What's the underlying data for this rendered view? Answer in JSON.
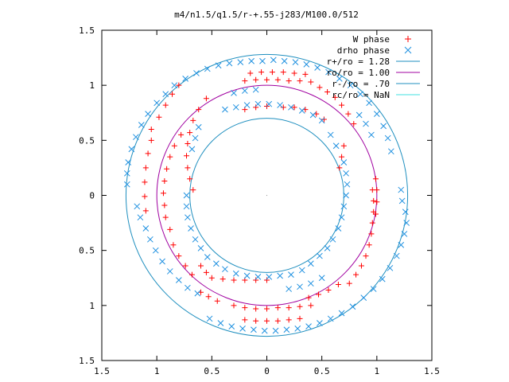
{
  "chart_data": {
    "type": "scatter",
    "title": "m4/n1.5/q1.5/r-+.55-j283/M100.0/512",
    "xlabel": "",
    "ylabel": "",
    "xlim": [
      -1.5,
      1.5
    ],
    "ylim": [
      -1.5,
      1.5
    ],
    "x_ticks": [
      -1.5,
      -1,
      -0.5,
      0,
      0.5,
      1,
      1.5
    ],
    "x_tick_labels": [
      "1.5",
      "1",
      "0.5",
      "0",
      "0.5",
      "1",
      "1.5"
    ],
    "y_ticks": [
      1.5,
      1,
      0.5,
      0,
      -0.5,
      -1,
      -1.5
    ],
    "y_tick_labels": [
      "1.5",
      "1",
      "0.5",
      "0",
      "0.5",
      "1",
      "1.5"
    ],
    "grid": false,
    "legend_position": "top-right",
    "scatter_series": [
      {
        "name": "W phase",
        "marker": "plus",
        "color": "#ff0000",
        "points": [
          [
            0.4,
            1.03
          ],
          [
            0.3,
            1.04
          ],
          [
            0.2,
            1.04
          ],
          [
            0.1,
            1.05
          ],
          [
            0.0,
            1.05
          ],
          [
            -0.1,
            1.05
          ],
          [
            -0.2,
            1.04
          ],
          [
            0.48,
            0.98
          ],
          [
            0.55,
            0.94
          ],
          [
            0.62,
            0.89
          ],
          [
            0.68,
            0.82
          ],
          [
            0.74,
            0.74
          ],
          [
            0.79,
            0.65
          ],
          [
            0.35,
            1.1
          ],
          [
            0.25,
            1.11
          ],
          [
            0.15,
            1.12
          ],
          [
            0.05,
            1.12
          ],
          [
            -0.05,
            1.12
          ],
          [
            -0.15,
            1.11
          ],
          [
            -0.55,
            0.88
          ],
          [
            -0.62,
            0.78
          ],
          [
            -0.67,
            0.68
          ],
          [
            -0.7,
            0.57
          ],
          [
            -0.72,
            0.47
          ],
          [
            -0.73,
            0.36
          ],
          [
            -0.72,
            0.25
          ],
          [
            -0.7,
            0.15
          ],
          [
            -0.67,
            0.05
          ],
          [
            -0.78,
            0.55
          ],
          [
            -0.84,
            0.45
          ],
          [
            -0.88,
            0.35
          ],
          [
            -0.91,
            0.24
          ],
          [
            -0.93,
            0.13
          ],
          [
            -0.94,
            0.02
          ],
          [
            -0.93,
            -0.09
          ],
          [
            -0.92,
            -0.2
          ],
          [
            -0.88,
            -0.31
          ],
          [
            -1.05,
            0.5
          ],
          [
            -1.08,
            0.38
          ],
          [
            -1.1,
            0.25
          ],
          [
            -1.11,
            0.12
          ],
          [
            -1.11,
            -0.01
          ],
          [
            -1.1,
            -0.14
          ],
          [
            -1.05,
            0.6
          ],
          [
            -0.98,
            0.71
          ],
          [
            -0.92,
            0.82
          ],
          [
            -0.86,
            0.92
          ],
          [
            -0.8,
            1.0
          ],
          [
            0.96,
            0.05
          ],
          [
            0.97,
            -0.05
          ],
          [
            0.97,
            -0.15
          ],
          [
            0.96,
            -0.25
          ],
          [
            0.95,
            -0.35
          ],
          [
            0.93,
            -0.45
          ],
          [
            0.9,
            -0.55
          ],
          [
            0.86,
            -0.64
          ],
          [
            0.81,
            -0.72
          ],
          [
            0.75,
            -0.8
          ],
          [
            0.99,
            0.15
          ],
          [
            1.0,
            0.05
          ],
          [
            1.0,
            -0.06
          ],
          [
            0.99,
            -0.17
          ],
          [
            0.65,
            -0.81
          ],
          [
            0.56,
            -0.86
          ],
          [
            0.47,
            -0.9
          ],
          [
            0.38,
            -0.93
          ],
          [
            0.1,
            -1.02
          ],
          [
            0.0,
            -1.03
          ],
          [
            -0.1,
            -1.03
          ],
          [
            -0.2,
            -1.02
          ],
          [
            -0.3,
            -1.0
          ],
          [
            0.2,
            -1.02
          ],
          [
            0.3,
            -1.01
          ],
          [
            0.4,
            -1.0
          ],
          [
            -0.45,
            -0.96
          ],
          [
            -0.53,
            -0.92
          ],
          [
            -0.6,
            -0.88
          ],
          [
            -0.2,
            -1.13
          ],
          [
            -0.1,
            -1.14
          ],
          [
            0.0,
            -1.14
          ],
          [
            0.1,
            -1.14
          ],
          [
            0.2,
            -1.13
          ],
          [
            0.3,
            -1.12
          ],
          [
            -0.5,
            -0.75
          ],
          [
            -0.55,
            -0.7
          ],
          [
            -0.6,
            -0.64
          ],
          [
            -0.4,
            -0.76
          ],
          [
            -0.3,
            -0.77
          ],
          [
            -0.2,
            -0.77
          ],
          [
            -0.1,
            -0.77
          ],
          [
            0.0,
            -0.77
          ],
          [
            0.7,
            0.45
          ],
          [
            0.68,
            0.35
          ],
          [
            0.66,
            0.25
          ],
          [
            0.15,
            0.8
          ],
          [
            0.25,
            0.8
          ],
          [
            0.35,
            0.78
          ],
          [
            0.45,
            0.74
          ],
          [
            0.52,
            0.69
          ],
          [
            -0.2,
            0.78
          ],
          [
            -0.1,
            0.8
          ],
          [
            0.0,
            0.81
          ],
          [
            -0.85,
            -0.45
          ],
          [
            -0.8,
            -0.55
          ],
          [
            -0.74,
            -0.64
          ],
          [
            -0.68,
            -0.72
          ]
        ]
      },
      {
        "name": "drho phase",
        "marker": "cross",
        "color": "#1e90e0",
        "points": [
          [
            -1.27,
            0.2
          ],
          [
            -1.27,
            0.1
          ],
          [
            -1.26,
            0.3
          ],
          [
            -1.23,
            0.42
          ],
          [
            -1.19,
            0.53
          ],
          [
            -1.14,
            0.64
          ],
          [
            -1.08,
            0.74
          ],
          [
            -1.0,
            0.84
          ],
          [
            -0.92,
            0.92
          ],
          [
            -0.84,
            1.0
          ],
          [
            -0.74,
            1.06
          ],
          [
            -0.64,
            1.11
          ],
          [
            -0.54,
            1.15
          ],
          [
            -0.44,
            1.18
          ],
          [
            -0.34,
            1.2
          ],
          [
            -0.24,
            1.21
          ],
          [
            -0.14,
            1.22
          ],
          [
            -0.04,
            1.22
          ],
          [
            0.06,
            1.23
          ],
          [
            0.16,
            1.22
          ],
          [
            0.26,
            1.21
          ],
          [
            0.36,
            1.19
          ],
          [
            0.46,
            1.16
          ],
          [
            0.56,
            1.12
          ],
          [
            0.66,
            1.06
          ],
          [
            0.76,
            1.0
          ],
          [
            0.85,
            0.92
          ],
          [
            0.93,
            0.84
          ],
          [
            1.0,
            0.74
          ],
          [
            1.06,
            0.63
          ],
          [
            1.1,
            0.52
          ],
          [
            1.13,
            0.4
          ],
          [
            1.26,
            -0.15
          ],
          [
            1.27,
            -0.25
          ],
          [
            1.25,
            -0.35
          ],
          [
            1.22,
            -0.45
          ],
          [
            1.18,
            -0.55
          ],
          [
            1.12,
            -0.66
          ],
          [
            1.05,
            -0.76
          ],
          [
            0.97,
            -0.85
          ],
          [
            0.88,
            -0.93
          ],
          [
            0.78,
            -1.01
          ],
          [
            0.68,
            -1.07
          ],
          [
            0.58,
            -1.12
          ],
          [
            0.48,
            -1.16
          ],
          [
            0.38,
            -1.19
          ],
          [
            0.28,
            -1.21
          ],
          [
            0.18,
            -1.22
          ],
          [
            0.08,
            -1.23
          ],
          [
            -0.02,
            -1.23
          ],
          [
            -0.12,
            -1.22
          ],
          [
            -0.22,
            -1.21
          ],
          [
            -0.32,
            -1.19
          ],
          [
            -0.42,
            -1.16
          ],
          [
            -0.52,
            -1.12
          ],
          [
            -1.1,
            -0.3
          ],
          [
            -1.06,
            -0.4
          ],
          [
            -1.01,
            -0.5
          ],
          [
            -0.95,
            -0.6
          ],
          [
            -0.88,
            -0.69
          ],
          [
            -0.8,
            -0.77
          ],
          [
            -0.72,
            -0.84
          ],
          [
            -0.63,
            -0.89
          ],
          [
            -1.18,
            -0.1
          ],
          [
            -1.15,
            -0.2
          ],
          [
            -0.62,
            0.62
          ],
          [
            -0.65,
            0.52
          ],
          [
            -0.68,
            0.42
          ],
          [
            -0.38,
            0.78
          ],
          [
            -0.28,
            0.8
          ],
          [
            -0.18,
            0.82
          ],
          [
            -0.08,
            0.83
          ],
          [
            0.02,
            0.83
          ],
          [
            0.12,
            0.82
          ],
          [
            0.22,
            0.8
          ],
          [
            0.32,
            0.77
          ],
          [
            0.42,
            0.73
          ],
          [
            0.5,
            0.68
          ],
          [
            0.58,
            0.55
          ],
          [
            0.63,
            0.45
          ],
          [
            0.7,
            0.3
          ],
          [
            0.72,
            0.2
          ],
          [
            0.73,
            0.1
          ],
          [
            0.72,
            0.0
          ],
          [
            0.7,
            -0.1
          ],
          [
            0.68,
            -0.2
          ],
          [
            0.65,
            -0.3
          ],
          [
            0.6,
            -0.4
          ],
          [
            0.55,
            -0.48
          ],
          [
            0.48,
            -0.55
          ],
          [
            0.4,
            -0.62
          ],
          [
            0.32,
            -0.68
          ],
          [
            0.22,
            -0.72
          ],
          [
            0.12,
            -0.73
          ],
          [
            0.02,
            -0.74
          ],
          [
            -0.08,
            -0.74
          ],
          [
            -0.18,
            -0.73
          ],
          [
            -0.28,
            -0.71
          ],
          [
            -0.38,
            -0.67
          ],
          [
            -0.46,
            -0.62
          ],
          [
            -0.54,
            -0.56
          ],
          [
            -0.6,
            -0.48
          ],
          [
            -0.65,
            -0.4
          ],
          [
            -0.69,
            -0.3
          ],
          [
            -0.72,
            -0.2
          ],
          [
            -0.73,
            -0.1
          ],
          [
            -0.73,
            0.0
          ],
          [
            0.95,
            0.55
          ],
          [
            0.9,
            0.65
          ],
          [
            0.84,
            0.73
          ],
          [
            1.22,
            0.05
          ],
          [
            1.23,
            -0.05
          ],
          [
            0.2,
            -0.85
          ],
          [
            0.3,
            -0.83
          ],
          [
            0.4,
            -0.8
          ],
          [
            0.5,
            -0.75
          ],
          [
            -0.3,
            0.93
          ],
          [
            -0.2,
            0.95
          ],
          [
            -0.1,
            0.96
          ]
        ]
      }
    ],
    "line_series": [
      {
        "name": "r+/ro = 1.28",
        "type": "circle",
        "radius": 1.28,
        "color": "#1f8fbf"
      },
      {
        "name": "ro/ro = 1.00",
        "type": "circle",
        "radius": 1.0,
        "color": "#a000a0"
      },
      {
        "name": "r-/ro = .70",
        "type": "circle",
        "radius": 0.7,
        "color": "#1f8fbf"
      },
      {
        "name": "rc/ro = NaN",
        "type": "circle",
        "radius": null,
        "color": "#40e0e0"
      }
    ]
  }
}
